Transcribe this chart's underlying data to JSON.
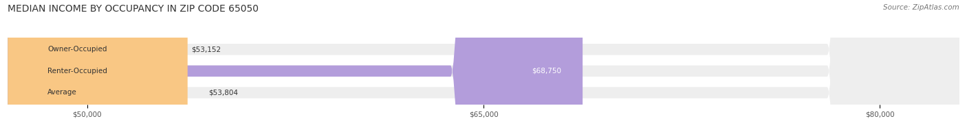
{
  "title": "MEDIAN INCOME BY OCCUPANCY IN ZIP CODE 65050",
  "source": "Source: ZipAtlas.com",
  "categories": [
    "Owner-Occupied",
    "Renter-Occupied",
    "Average"
  ],
  "values": [
    53152,
    68750,
    53804
  ],
  "bar_colors": [
    "#6dcfcf",
    "#b39ddb",
    "#f9c784"
  ],
  "bar_bg_color": "#eeeeee",
  "label_colors": [
    "#333333",
    "#ffffff",
    "#333333"
  ],
  "labels": [
    "$53,152",
    "$68,750",
    "$53,804"
  ],
  "xmin": 47000,
  "xmax": 83000,
  "xticks": [
    50000,
    65000,
    80000
  ],
  "xtick_labels": [
    "$50,000",
    "$65,000",
    "$80,000"
  ],
  "title_fontsize": 10,
  "source_fontsize": 7.5,
  "label_fontsize": 7.5,
  "cat_fontsize": 7.5,
  "background_color": "#ffffff",
  "bar_height": 0.52
}
